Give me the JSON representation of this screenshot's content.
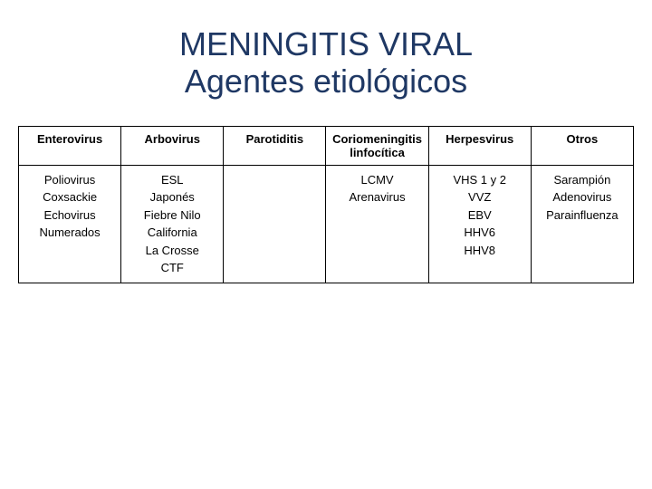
{
  "title_line1": "MENINGITIS VIRAL",
  "title_line2": "Agentes etiológicos",
  "title_color": "#1f3864",
  "table": {
    "columns": [
      "Enterovirus",
      "Arbovirus",
      "Parotiditis",
      "Coriomenin­gitis linfocítica",
      "Herpesvirus",
      "Otros"
    ],
    "column_widths": [
      "16.6%",
      "16.6%",
      "16.6%",
      "16.6%",
      "16.6%",
      "17%"
    ],
    "border_color": "#000000",
    "header_fontweight": "bold",
    "cell_fontsize": 13,
    "rows": [
      {
        "enterovirus": [
          "Poliovirus",
          "Coxsackie",
          "Echovirus",
          "Numerados"
        ],
        "arbovirus": [
          "ESL",
          "Japonés",
          "Fiebre Nilo",
          "California",
          "La Crosse",
          "CTF"
        ],
        "parotiditis": [],
        "coriomeningitis": [
          "LCMV",
          "Arenavirus"
        ],
        "herpesvirus": [
          "VHS 1 y 2",
          "VVZ",
          "EBV",
          "HHV6",
          "HHV8"
        ],
        "otros": [
          "Sarampión",
          "Adenovirus",
          "Parainfluenza"
        ]
      }
    ]
  }
}
